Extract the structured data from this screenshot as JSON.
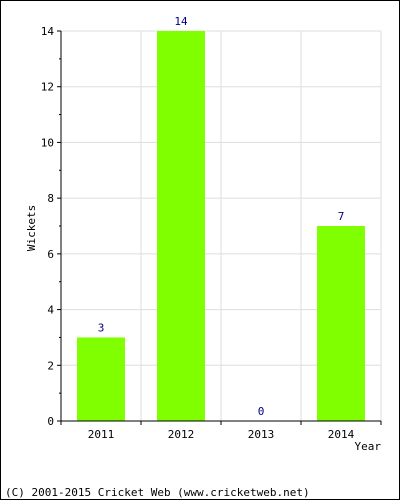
{
  "chart_data": {
    "type": "bar",
    "categories": [
      "2011",
      "2012",
      "2013",
      "2014"
    ],
    "values": [
      3,
      14,
      0,
      7
    ],
    "data_labels": [
      "3",
      "14",
      "0",
      "7"
    ],
    "xlabel": "Year",
    "ylabel": "Wickets",
    "ylim": [
      0,
      14
    ],
    "yticks": [
      "0",
      "2",
      "4",
      "6",
      "8",
      "10",
      "12",
      "14"
    ],
    "grid": true,
    "bar_color": "#80ff00",
    "label_color": "#000080"
  },
  "footer": "(C) 2001-2015 Cricket Web (www.cricketweb.net)"
}
